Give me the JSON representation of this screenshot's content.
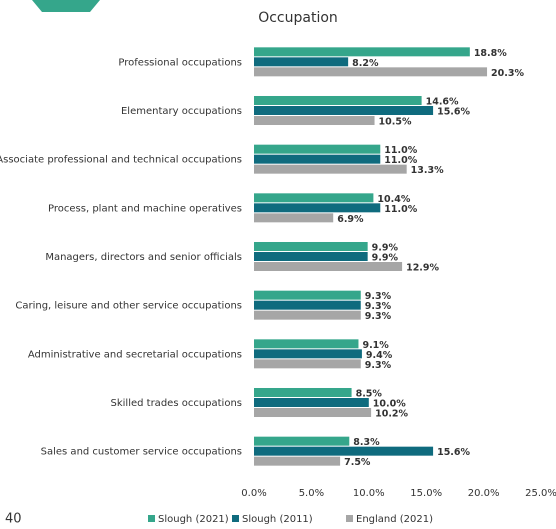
{
  "page_number": "40",
  "chart_data": {
    "type": "hbar",
    "title": "Occupation",
    "categories": [
      "Professional occupations",
      "Elementary occupations",
      "Associate professional and technical occupations",
      "Process, plant and machine operatives",
      "Managers, directors and senior officials",
      "Caring, leisure and other service occupations",
      "Administrative and secretarial occupations",
      "Skilled trades occupations",
      "Sales and customer service occupations"
    ],
    "series": [
      {
        "name": "Slough (2021)",
        "color": "#35a68b",
        "values": [
          18.8,
          14.6,
          11.0,
          10.4,
          9.9,
          9.3,
          9.1,
          8.5,
          8.3
        ],
        "value_labels": [
          "18.8%",
          "14.6%",
          "11.0%",
          "10.4%",
          "9.9%",
          "9.3%",
          "9.1%",
          "8.5%",
          "8.3%"
        ]
      },
      {
        "name": "Slough (2011)",
        "color": "#0f6b7e",
        "values": [
          8.2,
          15.6,
          11.0,
          11.0,
          9.9,
          9.3,
          9.4,
          10.0,
          15.6
        ],
        "value_labels": [
          "8.2%",
          "15.6%",
          "11.0%",
          "11.0%",
          "9.9%",
          "9.3%",
          "9.4%",
          "10.0%",
          "15.6%"
        ]
      },
      {
        "name": "England (2021)",
        "color": "#a6a6a6",
        "values": [
          20.3,
          10.5,
          13.3,
          6.9,
          12.9,
          9.3,
          9.3,
          10.2,
          7.5
        ],
        "value_labels": [
          "20.3%",
          "10.5%",
          "13.3%",
          "6.9%",
          "12.9%",
          "9.3%",
          "9.3%",
          "10.2%",
          "7.5%"
        ]
      }
    ],
    "xlim": [
      0,
      25
    ],
    "xticks": [
      {
        "value": 0,
        "label": "0.0%"
      },
      {
        "value": 5,
        "label": "5.0%"
      },
      {
        "value": 10,
        "label": "10.0%"
      },
      {
        "value": 15,
        "label": "15.0%"
      },
      {
        "value": 20,
        "label": "20.0%"
      },
      {
        "value": 25,
        "label": "25.0%"
      }
    ],
    "legend": "bottom"
  }
}
